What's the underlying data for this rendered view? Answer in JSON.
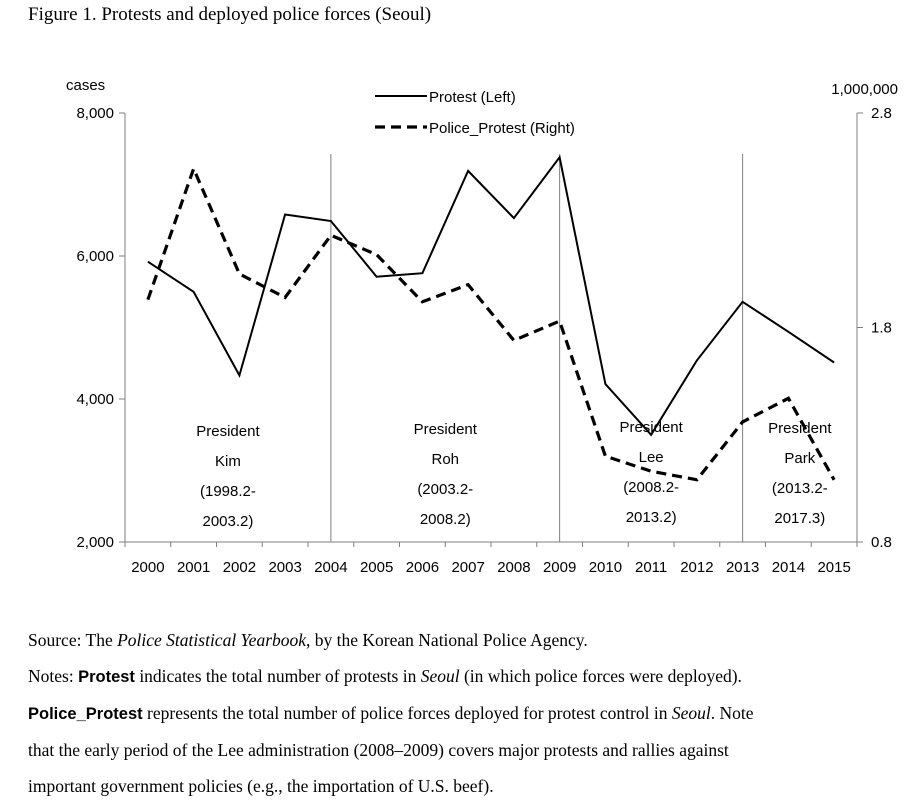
{
  "figure": {
    "title": "Figure 1. Protests and deployed police forces (Seoul)"
  },
  "chart_data": {
    "type": "line",
    "x": [
      "2000",
      "2001",
      "2002",
      "2003",
      "2004",
      "2005",
      "2006",
      "2007",
      "2008",
      "2009",
      "2010",
      "2011",
      "2012",
      "2013",
      "2014",
      "2015"
    ],
    "left_axis": {
      "unit_label": "cases",
      "ylim": [
        2000,
        8000
      ],
      "ticks": [
        "2,000",
        "4,000",
        "6,000",
        "8,000"
      ],
      "tick_values": [
        2000,
        4000,
        6000,
        8000
      ]
    },
    "right_axis": {
      "unit_label": "1,000,000",
      "ylim": [
        0.8,
        2.8
      ],
      "ticks": [
        "0.8",
        "1.8",
        "2.8"
      ],
      "tick_values": [
        0.8,
        1.8,
        2.8
      ]
    },
    "series": [
      {
        "name": "Protest (Left)",
        "axis": "left",
        "style": "solid",
        "values": [
          5920,
          5500,
          4330,
          6580,
          6490,
          5710,
          5760,
          7190,
          6530,
          7380,
          4210,
          3500,
          4540,
          5360,
          4940,
          4510
        ]
      },
      {
        "name": "Police_Protest (Right)",
        "axis": "right",
        "style": "dashed",
        "values": [
          1.93,
          2.54,
          2.05,
          1.94,
          2.23,
          2.14,
          1.92,
          2.0,
          1.74,
          1.83,
          1.2,
          1.13,
          1.09,
          1.36,
          1.47,
          1.09
        ]
      }
    ],
    "legend_position": "top-center",
    "grid": false,
    "eras": [
      {
        "lines": [
          "President",
          "Kim",
          "(1998.2-",
          "2003.2)"
        ]
      },
      {
        "lines": [
          "President",
          "Roh",
          "(2003.2-",
          "2008.2)"
        ]
      },
      {
        "lines": [
          "President",
          "Lee",
          "(2008.2-",
          "2013.2)"
        ]
      },
      {
        "lines": [
          "President",
          "Park",
          "(2013.2-",
          "2017.3)"
        ]
      }
    ],
    "era_boundaries_years": [
      "2004",
      "2009",
      "2013"
    ]
  },
  "notes": {
    "source_prefix": "Source: The ",
    "source_title": "Police Statistical Yearbook",
    "source_suffix": ", by the Korean National Police Agency.",
    "n1_prefix": "Notes: ",
    "n1_bold": "Protest",
    "n1_text": " indicates the total number of protests in ",
    "n1_italic": "Seoul",
    "n1_suffix": " (in which police forces were deployed).",
    "n2_bold": "Police_Protest",
    "n2_text": " represents the total number of police forces deployed for protest control in ",
    "n2_italic": "Seoul",
    "n2_suffix": ". Note",
    "n3": "that the early period of the Lee administration (2008–2009) covers major protests and rallies against",
    "n4": "important government policies (e.g., the importation of U.S. beef)."
  }
}
